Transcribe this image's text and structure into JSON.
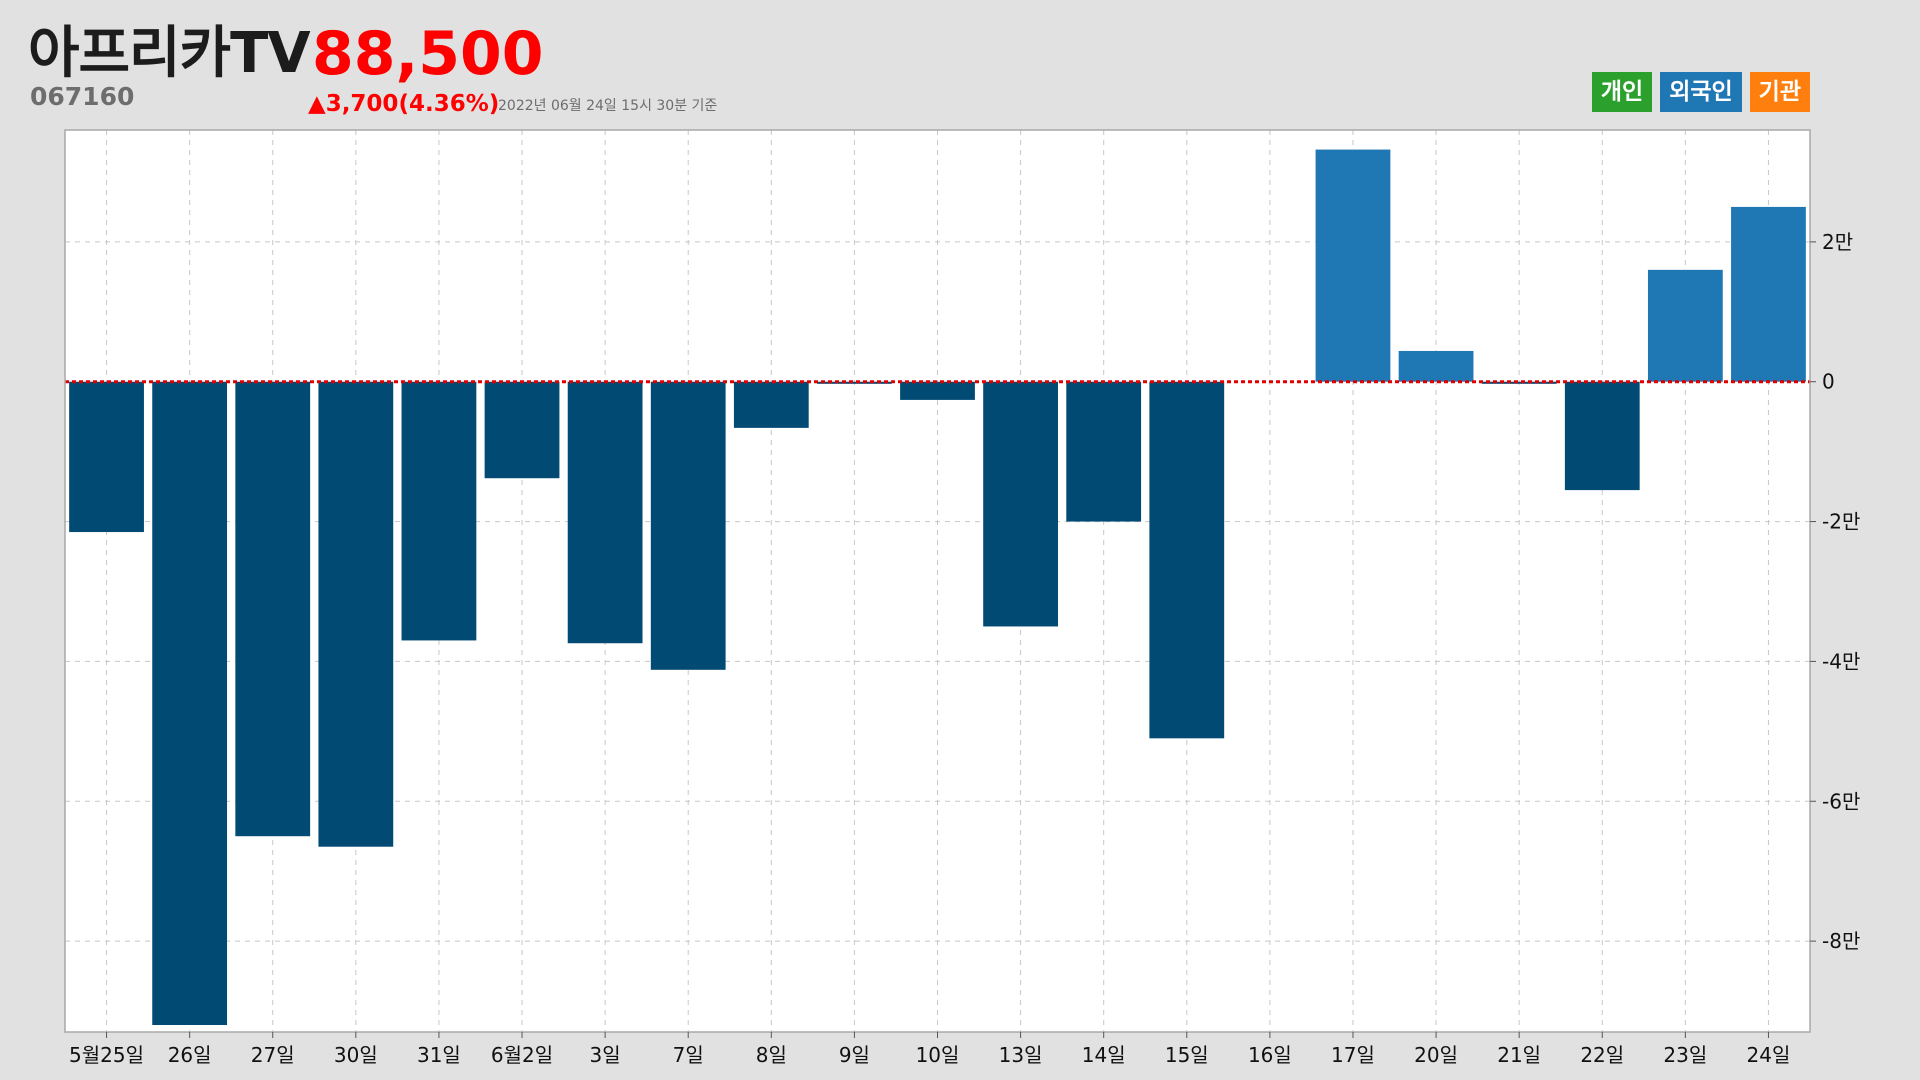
{
  "header": {
    "stock_name": "아프리카TV",
    "price": "88,500",
    "code": "067160",
    "change": "▲3,700(4.36%)",
    "as_of": "2022년 06월 24일 15시 30분 기준"
  },
  "legend": [
    {
      "label": "개인",
      "color": "#2ca02c"
    },
    {
      "label": "외국인",
      "color": "#1f77b4"
    },
    {
      "label": "기관",
      "color": "#ff7f0e"
    }
  ],
  "colors": {
    "positive": "#1f77b4",
    "negative": "#004a74",
    "zero_line": "#e00000",
    "grid": "#c8c8c8"
  },
  "chart_data": {
    "type": "bar",
    "title": "",
    "xlabel": "",
    "ylabel": "",
    "grid": true,
    "legend_position": "top-right",
    "y_axis_position": "right",
    "ylim": [
      -93000,
      36000
    ],
    "yticks": [
      20000,
      0,
      -20000,
      -40000,
      -60000,
      -80000
    ],
    "ytick_labels": [
      "2만",
      "0",
      "-2만",
      "-4만",
      "-6만",
      "-8만"
    ],
    "categories": [
      "5월25일",
      "26일",
      "27일",
      "30일",
      "31일",
      "6월2일",
      "3일",
      "7일",
      "8일",
      "9일",
      "10일",
      "13일",
      "14일",
      "15일",
      "16일",
      "17일",
      "20일",
      "21일",
      "22일",
      "23일",
      "24일"
    ],
    "series": [
      {
        "values": [
          -21500,
          -92000,
          -65000,
          -66500,
          -37000,
          -13800,
          -37400,
          -41200,
          -6600,
          -300,
          -2600,
          -35000,
          -20000,
          -51000,
          0,
          33200,
          4400,
          -300,
          -15500,
          16000,
          25000
        ]
      }
    ]
  }
}
